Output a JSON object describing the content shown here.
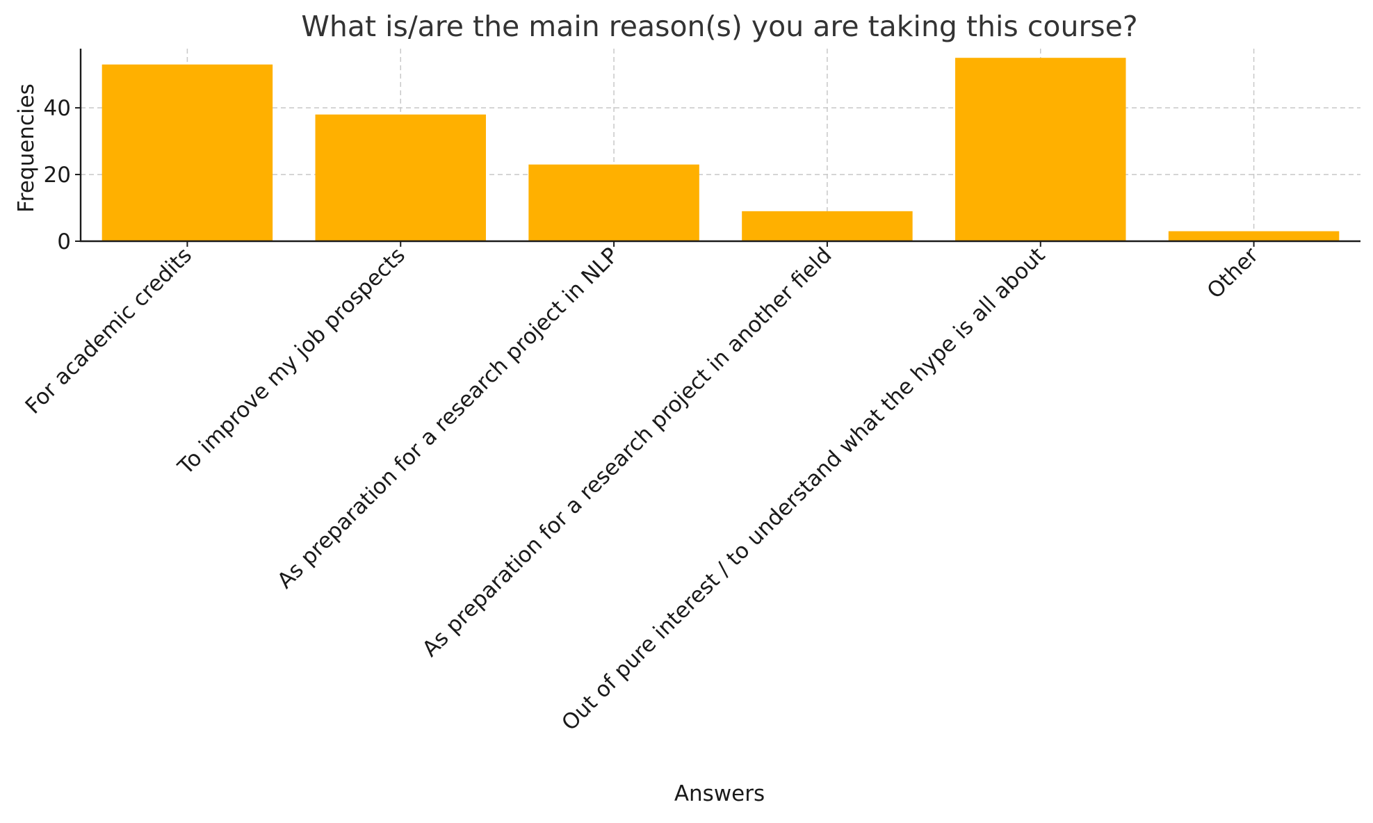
{
  "chart_data": {
    "type": "bar",
    "title": "What is/are the main reason(s) you are taking this course?",
    "xlabel": "Answers",
    "ylabel": "Frequencies",
    "categories": [
      "For academic credits",
      "To improve my job prospects",
      "As preparation for a research project in NLP",
      "As preparation for a research project in another field",
      "Out of pure interest / to understand what the hype is all about",
      "Other"
    ],
    "values": [
      53,
      38,
      23,
      9,
      55,
      3
    ],
    "ylim": [
      0,
      57.75
    ],
    "yticks": [
      0,
      20,
      40
    ],
    "bar_color": "#FFB000",
    "grid": true,
    "grid_color": "#c8c8c8"
  }
}
